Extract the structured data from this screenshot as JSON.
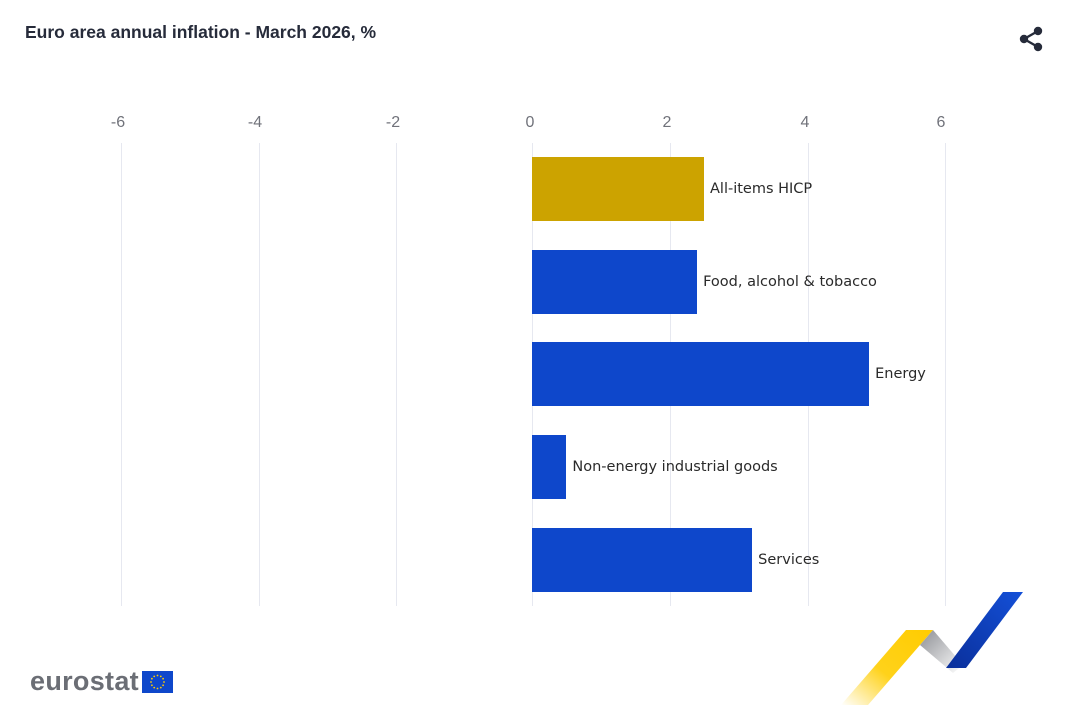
{
  "header": {
    "title": "Euro area annual inflation - March 2026, %",
    "share_icon": "share-icon"
  },
  "axis": {
    "ticks": [
      "-6",
      "-4",
      "-2",
      "0",
      "2",
      "4",
      "6"
    ]
  },
  "bars": [
    {
      "label": "All-items HICP",
      "value": 2.5,
      "color": "#cca300"
    },
    {
      "label": "Food, alcohol & tobacco",
      "value": 2.4,
      "color": "#0e47cb"
    },
    {
      "label": "Energy",
      "value": 4.9,
      "color": "#0e47cb"
    },
    {
      "label": "Non-energy industrial goods",
      "value": 0.5,
      "color": "#0e47cb"
    },
    {
      "label": "Services",
      "value": 3.2,
      "color": "#0e47cb"
    }
  ],
  "footer": {
    "logo_text": "eurostat",
    "flag_icon": "eu-flag-icon",
    "decoration": "eurostat-ribbon-graphic"
  },
  "colors": {
    "highlight": "#cca300",
    "series": "#0e47cb",
    "grid": "#e6e8f0",
    "title": "#262b3a"
  },
  "chart_data": {
    "type": "bar",
    "orientation": "horizontal",
    "title": "Euro area annual inflation - March 2026, %",
    "categories": [
      "All-items HICP",
      "Food, alcohol & tobacco",
      "Energy",
      "Non-energy industrial goods",
      "Services"
    ],
    "values": [
      2.5,
      2.4,
      4.9,
      0.5,
      3.2
    ],
    "xlabel": "",
    "ylabel": "",
    "xlim": [
      -6.5,
      7
    ],
    "xticks": [
      -6,
      -4,
      -2,
      0,
      2,
      4,
      6
    ],
    "grid": true,
    "legend": "none",
    "bar_colors": [
      "#cca300",
      "#0e47cb",
      "#0e47cb",
      "#0e47cb",
      "#0e47cb"
    ],
    "annotations": "category labels placed at end of each bar"
  }
}
